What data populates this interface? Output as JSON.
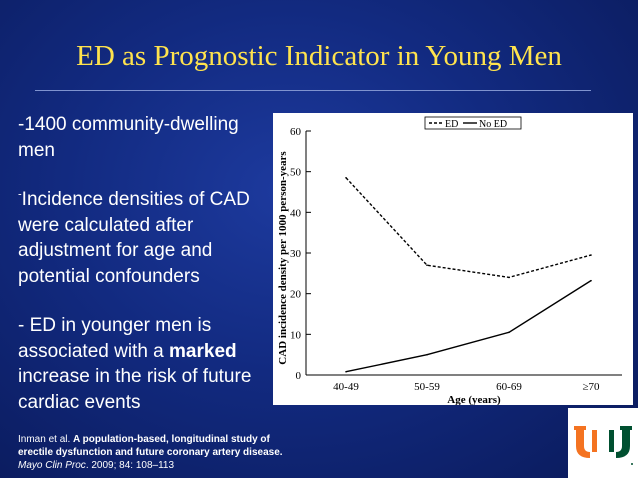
{
  "slide": {
    "title": "ED as Prognostic Indicator in Young Men",
    "bullets": {
      "b1": "-1400 community-dwelling men",
      "b2_sup": "-",
      "b2": "Incidence densities of CAD were calculated after adjustment for age and potential confounders",
      "b3_pre": "- ED in younger men is associated with a ",
      "b3_bold": "marked",
      "b3_post": " increase in the risk of future cardiac events"
    },
    "citation": {
      "authors": "Inman et al. ",
      "title": "A population-based, longitudinal study of erectile dysfunction and future coronary artery disease.",
      "journal": " Mayo Clin Proc",
      "details": ". 2009; 84: 108–113"
    }
  },
  "logo": {
    "name": "university-of-miami-u-logo",
    "colors": [
      "#f47321",
      "#005030"
    ]
  },
  "chart_data": {
    "type": "line",
    "categories": [
      "40-49",
      "50-59",
      "60-69",
      "≥70"
    ],
    "series": [
      {
        "name": "ED",
        "values": [
          48.5,
          27,
          24,
          29.5
        ],
        "style": "dashed",
        "color": "#000000"
      },
      {
        "name": "No ED",
        "values": [
          0.8,
          5,
          10.5,
          23.2
        ],
        "style": "solid",
        "color": "#000000"
      }
    ],
    "xlabel": "Age (years)",
    "ylabel": "CAD incidence density per 1000 person-years",
    "ylim": [
      0,
      60
    ],
    "yticks": [
      0,
      10,
      20,
      30,
      40,
      50,
      60
    ],
    "legend": "top-right",
    "grid": false
  }
}
